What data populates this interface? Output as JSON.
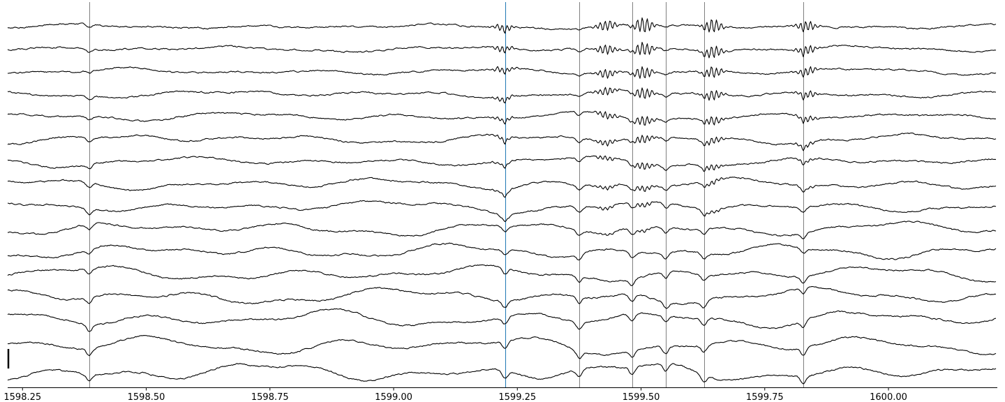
{
  "chart_data": {
    "type": "line",
    "title": "",
    "xlabel": "",
    "ylabel": "",
    "xlim": [
      1598.22,
      1600.22
    ],
    "x_ticks": [
      {
        "value": 1598.25,
        "label": "1598.25"
      },
      {
        "value": 1598.5,
        "label": "1598.50"
      },
      {
        "value": 1598.75,
        "label": "1598.75"
      },
      {
        "value": 1599.0,
        "label": "1599.00"
      },
      {
        "value": 1599.25,
        "label": "1599.25"
      },
      {
        "value": 1599.5,
        "label": "1599.50"
      },
      {
        "value": 1599.75,
        "label": "1599.75"
      },
      {
        "value": 1600.0,
        "label": "1600.00"
      }
    ],
    "grid": false,
    "channel_count": 16,
    "event_markers": [
      {
        "x": 1598.385,
        "color": "#7f7f7f"
      },
      {
        "x": 1599.225,
        "color": "#1f77b4"
      },
      {
        "x": 1599.375,
        "color": "#7f7f7f"
      },
      {
        "x": 1599.482,
        "color": "#7f7f7f"
      },
      {
        "x": 1599.55,
        "color": "#7f7f7f"
      },
      {
        "x": 1599.627,
        "color": "#7f7f7f"
      },
      {
        "x": 1599.828,
        "color": "#7f7f7f"
      }
    ],
    "bursts": [
      {
        "x": 1599.222,
        "amplitude": 0.5,
        "channels": [
          0,
          8
        ]
      },
      {
        "x": 1599.43,
        "amplitude": 0.7,
        "channels": [
          0,
          9
        ]
      },
      {
        "x": 1599.505,
        "amplitude": 1.0,
        "channels": [
          0,
          9
        ]
      },
      {
        "x": 1599.645,
        "amplitude": 0.9,
        "channels": [
          0,
          8
        ]
      },
      {
        "x": 1599.835,
        "amplitude": 0.7,
        "channels": [
          0,
          7
        ]
      }
    ],
    "colors": {
      "trace": "#000000",
      "marker": "#7f7f7f",
      "marker_highlight": "#1f77b4",
      "axis": "#000000"
    }
  }
}
